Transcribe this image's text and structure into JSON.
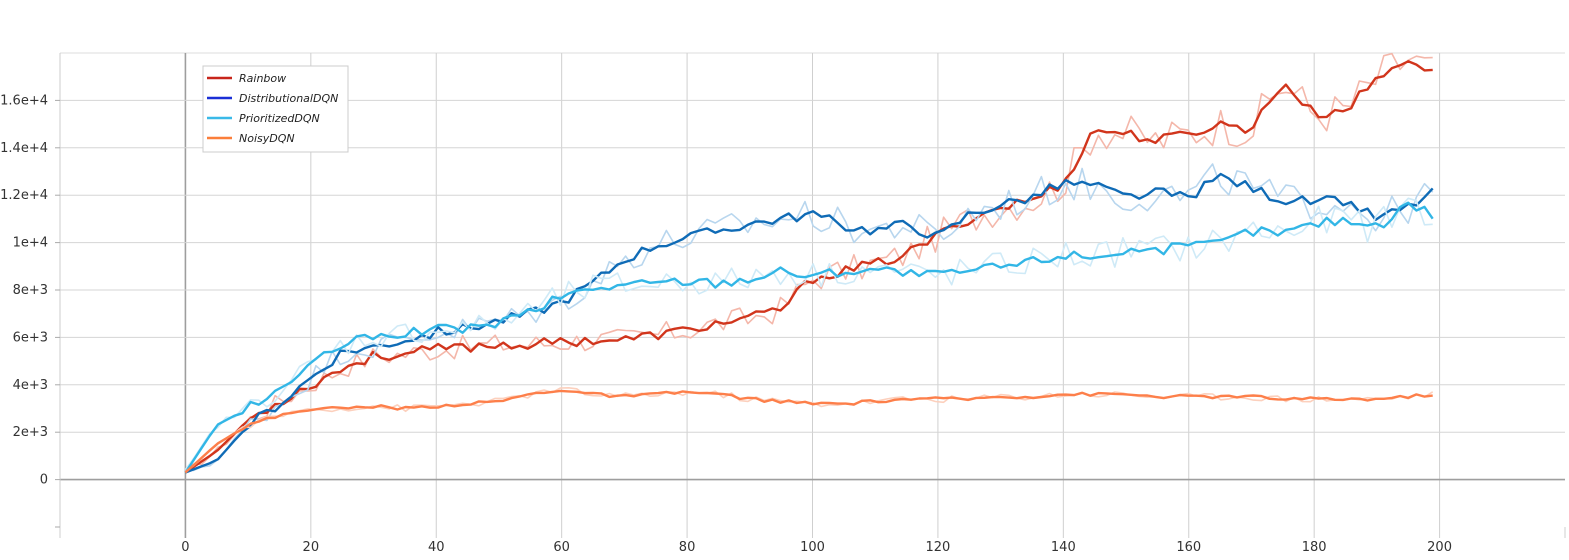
{
  "chart_data": {
    "type": "line",
    "title": "",
    "xlabel": "",
    "ylabel": "",
    "xlim": [
      -20,
      220
    ],
    "ylim": [
      -2000,
      18000
    ],
    "grid": true,
    "legend_position": "top-left",
    "x_ticks": [
      0,
      20,
      40,
      60,
      80,
      100,
      120,
      140,
      160,
      180,
      200
    ],
    "x_tick_labels": [
      "0",
      "20",
      "40",
      "60",
      "80",
      "100",
      "120",
      "140",
      "160",
      "180",
      "200"
    ],
    "y_ticks": [
      0,
      2000,
      4000,
      6000,
      8000,
      10000,
      12000,
      14000,
      16000
    ],
    "y_tick_labels": [
      "0",
      "2e+3",
      "4e+3",
      "6e+3",
      "8e+3",
      "1e+4",
      "1.2e+4",
      "1.4e+4",
      "1.6e+4"
    ],
    "x": [
      0,
      5,
      10,
      15,
      20,
      25,
      30,
      35,
      40,
      45,
      50,
      55,
      60,
      65,
      70,
      75,
      80,
      85,
      90,
      95,
      100,
      105,
      110,
      115,
      120,
      125,
      130,
      135,
      140,
      145,
      150,
      155,
      160,
      165,
      170,
      175,
      180,
      185,
      190,
      195,
      199
    ],
    "series": [
      {
        "name": "Rainbow",
        "color": "#d1351c",
        "raw_color": "#f4b7aa",
        "values": [
          300,
          1200,
          2500,
          3300,
          4000,
          4700,
          5200,
          5300,
          5500,
          5600,
          5700,
          5700,
          5800,
          5900,
          5900,
          6100,
          6300,
          6600,
          6800,
          7200,
          8500,
          8800,
          9100,
          9500,
          10300,
          11000,
          11500,
          11800,
          12500,
          14800,
          14600,
          14300,
          14600,
          15000,
          14800,
          16800,
          15400,
          15600,
          16900,
          17800,
          17100
        ]
      },
      {
        "name": "DistributionalDQN",
        "color": "#0f6bb6",
        "raw_color": "#b8d6ee",
        "values": [
          300,
          800,
          2300,
          3200,
          4300,
          5400,
          5600,
          5900,
          6200,
          6400,
          6700,
          7000,
          7500,
          8300,
          9300,
          9900,
          10200,
          10500,
          10800,
          11000,
          11200,
          10700,
          10500,
          10800,
          10200,
          11200,
          11600,
          11900,
          12500,
          12400,
          11900,
          12100,
          11900,
          12800,
          12300,
          11800,
          11700,
          11800,
          11000,
          11500,
          12100
        ]
      },
      {
        "name": "PrioritizedDQN",
        "color": "#32b6e6",
        "raw_color": "#cfeaf7",
        "values": [
          300,
          2300,
          3000,
          3800,
          4800,
          5700,
          6000,
          6200,
          6300,
          6400,
          6600,
          7100,
          7700,
          8100,
          8200,
          8300,
          8400,
          8300,
          8500,
          8800,
          8600,
          8800,
          8900,
          8700,
          8600,
          8800,
          9000,
          9200,
          9500,
          9400,
          9700,
          9700,
          9800,
          10000,
          10500,
          10400,
          10800,
          11000,
          10600,
          11700,
          11200
        ]
      },
      {
        "name": "NoisyDQN",
        "color": "#fd7f4a",
        "raw_color": "#fcd0bd",
        "values": [
          300,
          1500,
          2300,
          2700,
          3000,
          3000,
          3100,
          3000,
          3100,
          3200,
          3300,
          3600,
          3800,
          3600,
          3500,
          3600,
          3700,
          3600,
          3400,
          3300,
          3200,
          3200,
          3300,
          3400,
          3400,
          3400,
          3500,
          3500,
          3600,
          3600,
          3600,
          3500,
          3500,
          3500,
          3500,
          3400,
          3400,
          3400,
          3400,
          3500,
          3600
        ]
      }
    ]
  }
}
